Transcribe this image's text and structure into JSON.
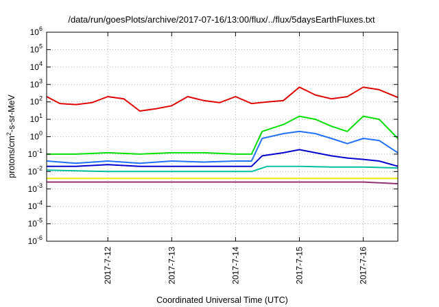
{
  "chart_data": {
    "type": "line",
    "title": "/data/run/goesPlots/archive/2017-07-16/13:00/flux/../flux/5daysEarthFluxes.txt",
    "xlabel": "Coordinated Universal Time (UTC)",
    "ylabel": "protons/cm²-s-sr-MeV",
    "y_scale": "log",
    "ylim": [
      1e-06,
      1000000.0
    ],
    "y_ticks": [
      {
        "exp": "-6",
        "value": 1e-06
      },
      {
        "exp": "-5",
        "value": 1e-05
      },
      {
        "exp": "-4",
        "value": 0.0001
      },
      {
        "exp": "-3",
        "value": 0.001
      },
      {
        "exp": "-2",
        "value": 0.01
      },
      {
        "exp": "-1",
        "value": 0.1
      },
      {
        "exp": "0",
        "value": 1
      },
      {
        "exp": "1",
        "value": 10
      },
      {
        "exp": "2",
        "value": 100
      },
      {
        "exp": "3",
        "value": 1000
      },
      {
        "exp": "4",
        "value": 10000
      },
      {
        "exp": "5",
        "value": 100000
      },
      {
        "exp": "6",
        "value": 1000000
      }
    ],
    "xlim": [
      "2017-07-11T01:00",
      "2017-07-16T13:00"
    ],
    "x_ticks": [
      {
        "label": "2017-7-12",
        "date": "2017-07-12T00:00"
      },
      {
        "label": "2017-7-13",
        "date": "2017-07-13T00:00"
      },
      {
        "label": "2017-7-14",
        "date": "2017-07-14T00:00"
      },
      {
        "label": "2017-7-15",
        "date": "2017-07-15T00:00"
      },
      {
        "label": "2017-7-16",
        "date": "2017-07-16T00:00"
      }
    ],
    "grid": true,
    "legend": "none",
    "series": [
      {
        "color": "#e00000",
        "x": [
          "2017-07-11T01:00",
          "2017-07-11T06:00",
          "2017-07-11T12:00",
          "2017-07-11T18:00",
          "2017-07-12T00:00",
          "2017-07-12T06:00",
          "2017-07-12T12:00",
          "2017-07-12T18:00",
          "2017-07-13T00:00",
          "2017-07-13T06:00",
          "2017-07-13T12:00",
          "2017-07-13T18:00",
          "2017-07-14T00:00",
          "2017-07-14T06:00",
          "2017-07-14T12:00",
          "2017-07-14T18:00",
          "2017-07-15T00:00",
          "2017-07-15T06:00",
          "2017-07-15T12:00",
          "2017-07-15T18:00",
          "2017-07-16T00:00",
          "2017-07-16T06:00",
          "2017-07-16T13:00"
        ],
        "y": [
          200,
          80,
          70,
          90,
          200,
          150,
          30,
          40,
          60,
          200,
          120,
          90,
          200,
          80,
          100,
          120,
          700,
          250,
          150,
          200,
          700,
          500,
          180
        ]
      },
      {
        "color": "#00e000",
        "x": [
          "2017-07-11T01:00",
          "2017-07-11T12:00",
          "2017-07-12T00:00",
          "2017-07-12T12:00",
          "2017-07-13T00:00",
          "2017-07-13T12:00",
          "2017-07-14T00:00",
          "2017-07-14T06:00",
          "2017-07-14T10:00",
          "2017-07-14T18:00",
          "2017-07-15T00:00",
          "2017-07-15T06:00",
          "2017-07-15T12:00",
          "2017-07-15T18:00",
          "2017-07-16T00:00",
          "2017-07-16T06:00",
          "2017-07-16T13:00"
        ],
        "y": [
          0.1,
          0.1,
          0.12,
          0.1,
          0.12,
          0.12,
          0.1,
          0.1,
          2,
          5,
          15,
          10,
          4,
          2,
          15,
          10,
          0.8
        ]
      },
      {
        "color": "#2070ff",
        "x": [
          "2017-07-11T01:00",
          "2017-07-11T12:00",
          "2017-07-12T00:00",
          "2017-07-12T12:00",
          "2017-07-13T00:00",
          "2017-07-13T12:00",
          "2017-07-14T00:00",
          "2017-07-14T06:00",
          "2017-07-14T10:00",
          "2017-07-14T18:00",
          "2017-07-15T00:00",
          "2017-07-15T06:00",
          "2017-07-15T12:00",
          "2017-07-15T18:00",
          "2017-07-16T00:00",
          "2017-07-16T06:00",
          "2017-07-16T13:00"
        ],
        "y": [
          0.04,
          0.03,
          0.04,
          0.03,
          0.04,
          0.035,
          0.04,
          0.04,
          0.8,
          1.5,
          2,
          1.5,
          0.8,
          0.4,
          0.8,
          0.6,
          0.12
        ]
      },
      {
        "color": "#0000d0",
        "x": [
          "2017-07-11T01:00",
          "2017-07-11T12:00",
          "2017-07-12T00:00",
          "2017-07-12T12:00",
          "2017-07-13T00:00",
          "2017-07-13T12:00",
          "2017-07-14T00:00",
          "2017-07-14T06:00",
          "2017-07-14T10:00",
          "2017-07-14T18:00",
          "2017-07-15T00:00",
          "2017-07-15T06:00",
          "2017-07-15T12:00",
          "2017-07-15T18:00",
          "2017-07-16T00:00",
          "2017-07-16T06:00",
          "2017-07-16T13:00"
        ],
        "y": [
          0.02,
          0.02,
          0.025,
          0.02,
          0.02,
          0.02,
          0.02,
          0.02,
          0.08,
          0.12,
          0.18,
          0.12,
          0.08,
          0.06,
          0.05,
          0.04,
          0.02
        ]
      },
      {
        "color": "#00c0a0",
        "x": [
          "2017-07-11T01:00",
          "2017-07-12T00:00",
          "2017-07-13T00:00",
          "2017-07-14T00:00",
          "2017-07-14T06:00",
          "2017-07-14T12:00",
          "2017-07-15T00:00",
          "2017-07-15T12:00",
          "2017-07-16T00:00",
          "2017-07-16T13:00"
        ],
        "y": [
          0.012,
          0.01,
          0.01,
          0.01,
          0.01,
          0.02,
          0.02,
          0.018,
          0.018,
          0.016
        ]
      },
      {
        "color": "#e8e800",
        "x": [
          "2017-07-11T01:00",
          "2017-07-12T00:00",
          "2017-07-13T00:00",
          "2017-07-14T00:00",
          "2017-07-15T00:00",
          "2017-07-16T00:00",
          "2017-07-16T13:00"
        ],
        "y": [
          0.004,
          0.004,
          0.004,
          0.004,
          0.004,
          0.004,
          0.004
        ]
      },
      {
        "color": "#903070",
        "x": [
          "2017-07-11T01:00",
          "2017-07-12T00:00",
          "2017-07-13T00:00",
          "2017-07-14T00:00",
          "2017-07-15T00:00",
          "2017-07-16T00:00",
          "2017-07-16T13:00"
        ],
        "y": [
          0.0025,
          0.0025,
          0.0025,
          0.0025,
          0.0025,
          0.0025,
          0.002
        ]
      }
    ]
  }
}
